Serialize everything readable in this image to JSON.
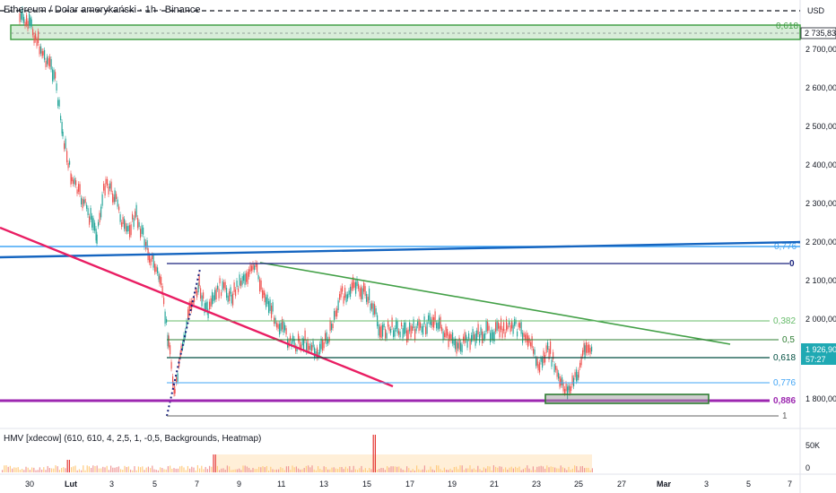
{
  "header": {
    "title": "Ethereum / Dolar amerykański · 1h · Binance",
    "currency": "USD"
  },
  "price_axis": {
    "ticks": [
      "2 700,00",
      "2 600,00",
      "2 500,00",
      "2 400,00",
      "2 300,00",
      "2 200,00",
      "2 100,00",
      "2 000,00",
      "1 800,00"
    ]
  },
  "price_tags": {
    "top": "2 735,83",
    "current": "1 926,90",
    "countdown": "57:27",
    "current_color": "#1fa9b3"
  },
  "fib_levels": [
    {
      "label": "0,618",
      "color": "#43a047"
    },
    {
      "label": "0,776",
      "color": "#42a5f5"
    },
    {
      "label": "0",
      "color": "#1a237e"
    },
    {
      "label": "0,382",
      "color": "#66bb6a"
    },
    {
      "label": "0,5",
      "color": "#2e7d32"
    },
    {
      "label": "0,618",
      "color": "#004d40"
    },
    {
      "label": "0,776",
      "color": "#42a5f5"
    },
    {
      "label": "0,886",
      "color": "#9c27b0"
    },
    {
      "label": "1",
      "color": "#616161"
    }
  ],
  "indicator": {
    "title": "HMV [xdecow] (610, 610, 4, 2,5, 1, -0,5, Backgrounds, Heatmap)",
    "ticks": [
      "50K",
      "0"
    ]
  },
  "time_axis": {
    "labels": [
      "30",
      "Lut",
      "3",
      "5",
      "7",
      "9",
      "11",
      "13",
      "15",
      "17",
      "19",
      "21",
      "23",
      "25",
      "27",
      "Mar",
      "3",
      "5",
      "7"
    ]
  },
  "colors": {
    "up": "#26a69a",
    "down": "#ef5350",
    "trend_blue": "#1565c0",
    "trend_red": "#e91e63",
    "trend_green": "#43a047",
    "zone_green": "#c8e6c9",
    "purple": "#9c27b0"
  }
}
